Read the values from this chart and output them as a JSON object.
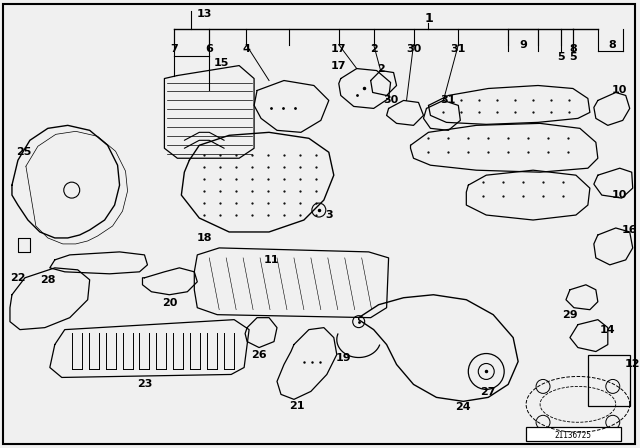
{
  "bg_color": "#f0f0f0",
  "border_color": "#000000",
  "line_color": "#000000",
  "part_number_box": "21136725",
  "figsize": [
    6.4,
    4.48
  ],
  "dpi": 100
}
